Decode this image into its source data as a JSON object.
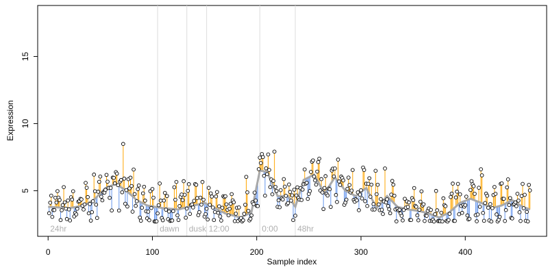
{
  "chart_data": {
    "type": "scatter",
    "title": "",
    "xlabel": "Sample index",
    "ylabel": "Expression",
    "xlim": [
      -10,
      478
    ],
    "ylim": [
      1.6,
      18.8
    ],
    "x_ticks": [
      0,
      100,
      200,
      300,
      400
    ],
    "y_ticks": [
      5,
      10,
      15
    ],
    "grid": false,
    "legend": "none",
    "colors": {
      "points_fill": "#ffffff",
      "points_stroke": "#000000",
      "smooth_line": "#a9a9a9",
      "residual_above": "#ffa500",
      "residual_below": "#6495ed",
      "segment_lines": "#dcdcdc",
      "segment_labels": "#b0b0b0"
    },
    "segments": [
      {
        "label": "24hr",
        "start": 0
      },
      {
        "label": "dawn",
        "start": 105
      },
      {
        "label": "dusk",
        "start": 133
      },
      {
        "label": "12:00",
        "start": 152
      },
      {
        "label": "0:00",
        "start": 203
      },
      {
        "label": "48hr",
        "start": 237
      }
    ],
    "series": [
      {
        "smooth": [
          [
            0,
            3.8
          ],
          [
            20,
            3.7
          ],
          [
            35,
            3.9
          ],
          [
            45,
            4.4
          ],
          [
            55,
            5.2
          ],
          [
            65,
            5.5
          ],
          [
            75,
            5.0
          ],
          [
            85,
            4.3
          ],
          [
            95,
            3.9
          ],
          [
            110,
            3.7
          ],
          [
            125,
            3.6
          ],
          [
            140,
            3.9
          ],
          [
            150,
            4.1
          ],
          [
            160,
            3.7
          ],
          [
            170,
            3.3
          ],
          [
            185,
            3.0
          ],
          [
            195,
            3.4
          ],
          [
            203,
            6.5
          ],
          [
            210,
            6.4
          ],
          [
            220,
            4.6
          ],
          [
            230,
            4.6
          ],
          [
            237,
            3.8
          ],
          [
            245,
            5.8
          ],
          [
            255,
            6.2
          ],
          [
            265,
            4.8
          ],
          [
            275,
            6.0
          ],
          [
            285,
            5.0
          ],
          [
            295,
            4.6
          ],
          [
            305,
            5.2
          ],
          [
            315,
            3.7
          ],
          [
            325,
            4.6
          ],
          [
            335,
            3.8
          ],
          [
            345,
            3.6
          ],
          [
            355,
            3.5
          ],
          [
            365,
            3.3
          ],
          [
            375,
            3.0
          ],
          [
            385,
            3.4
          ],
          [
            395,
            4.1
          ],
          [
            405,
            4.4
          ],
          [
            415,
            4.1
          ],
          [
            425,
            3.7
          ],
          [
            435,
            3.9
          ],
          [
            445,
            4.3
          ],
          [
            455,
            3.8
          ],
          [
            462,
            3.6
          ]
        ]
      }
    ]
  }
}
